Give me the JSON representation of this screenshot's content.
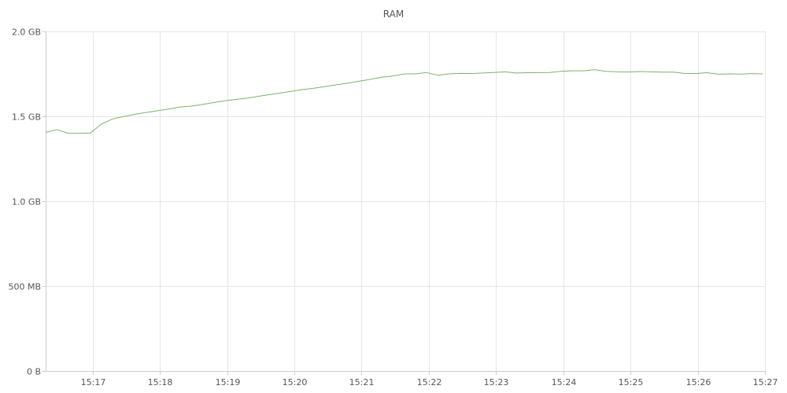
{
  "chart_data": {
    "type": "line",
    "title": "RAM",
    "xlabel": "",
    "ylabel": "",
    "x_ticks": [
      "15:17",
      "15:18",
      "15:19",
      "15:20",
      "15:21",
      "15:22",
      "15:23",
      "15:24",
      "15:25",
      "15:26",
      "15:27"
    ],
    "y_ticks": [
      {
        "value": 0,
        "label": "0 B"
      },
      {
        "value": 500,
        "label": "500 MB"
      },
      {
        "value": 1000,
        "label": "1.0 GB"
      },
      {
        "value": 1500,
        "label": "1.5 GB"
      },
      {
        "value": 2000,
        "label": "2.0 GB"
      }
    ],
    "xlim": [
      "15:16:18",
      "15:27:00"
    ],
    "ylim": [
      0,
      2000
    ],
    "y_unit": "MB",
    "grid": true,
    "color": "#7eb26d",
    "series": [
      {
        "x": [
          "15:16:18",
          "15:16:28",
          "15:16:38",
          "15:16:48",
          "15:16:58",
          "15:17:08",
          "15:17:18",
          "15:17:28",
          "15:17:38",
          "15:17:48",
          "15:17:58",
          "15:18:08",
          "15:18:18",
          "15:18:28",
          "15:18:38",
          "15:18:48",
          "15:18:58",
          "15:19:08",
          "15:19:18",
          "15:19:28",
          "15:19:38",
          "15:19:48",
          "15:19:58",
          "15:20:08",
          "15:20:18",
          "15:20:28",
          "15:20:38",
          "15:20:48",
          "15:20:58",
          "15:21:08",
          "15:21:18",
          "15:21:28",
          "15:21:38",
          "15:21:48",
          "15:21:58",
          "15:22:08",
          "15:22:18",
          "15:22:28",
          "15:22:38",
          "15:22:48",
          "15:22:58",
          "15:23:08",
          "15:23:18",
          "15:23:28",
          "15:23:38",
          "15:23:48",
          "15:23:58",
          "15:24:08",
          "15:24:18",
          "15:24:28",
          "15:24:38",
          "15:24:48",
          "15:24:58",
          "15:25:08",
          "15:25:18",
          "15:25:28",
          "15:25:38",
          "15:25:48",
          "15:25:58",
          "15:26:08",
          "15:26:18",
          "15:26:28",
          "15:26:38",
          "15:26:48",
          "15:26:58"
        ],
        "values": [
          1405,
          1422,
          1400,
          1400,
          1402,
          1455,
          1485,
          1500,
          1512,
          1523,
          1533,
          1543,
          1555,
          1560,
          1570,
          1581,
          1592,
          1600,
          1607,
          1618,
          1628,
          1638,
          1648,
          1658,
          1666,
          1676,
          1686,
          1696,
          1707,
          1718,
          1730,
          1738,
          1750,
          1750,
          1758,
          1742,
          1750,
          1753,
          1752,
          1755,
          1758,
          1762,
          1755,
          1757,
          1757,
          1758,
          1765,
          1768,
          1768,
          1775,
          1765,
          1762,
          1761,
          1764,
          1762,
          1760,
          1760,
          1753,
          1752,
          1757,
          1748,
          1750,
          1749,
          1752,
          1750
        ]
      }
    ]
  }
}
